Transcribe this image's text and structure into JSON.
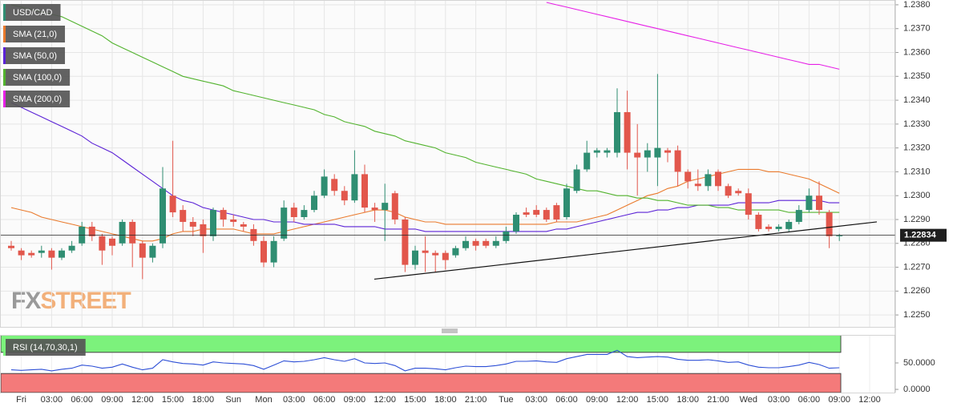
{
  "chart_data": [
    {
      "type": "candlestick",
      "categories": [
        null,
        "Fri",
        null,
        null,
        "03:00",
        null,
        null,
        "06:00",
        null,
        null,
        "09:00",
        null,
        null,
        "12:00",
        null,
        null,
        "15:00",
        null,
        null,
        "18:00",
        null,
        null,
        "Sun",
        null,
        null,
        "Mon",
        null,
        null,
        "03:00",
        null,
        null,
        "06:00",
        null,
        null,
        "09:00",
        null,
        null,
        "12:00",
        null,
        null,
        "15:00",
        null,
        null,
        "18:00",
        null,
        null,
        "21:00",
        null,
        null,
        "Tue",
        null,
        null,
        "03:00",
        null,
        null,
        "06:00",
        null,
        null,
        "09:00",
        null,
        null,
        "12:00",
        null,
        null,
        "15:00",
        null,
        null,
        "18:00",
        null,
        null,
        "21:00",
        null,
        null,
        "Wed",
        null,
        null,
        "03:00",
        null,
        null,
        "06:00",
        null,
        null,
        "09:00",
        null,
        null,
        "12:00"
      ],
      "candles": {
        "name": "USD/CAD",
        "legend_color": "#2f8e72",
        "up_color": "#2f8e72",
        "down_color": "#e2574c",
        "open": [
          1.2279,
          1.2277,
          1.2276,
          1.2276,
          1.2277,
          1.2274,
          1.2277,
          1.228,
          1.2287,
          1.2283,
          1.2282,
          1.228,
          1.2289,
          1.228,
          1.2274,
          1.228,
          1.23,
          1.2294,
          1.2289,
          1.2288,
          1.2283,
          1.2294,
          1.229,
          1.2288,
          1.2286,
          1.2281,
          1.2272,
          1.2282,
          1.2295,
          1.2291,
          1.2294,
          1.23,
          1.2307,
          1.2302,
          1.2298,
          1.2309,
          1.2295,
          1.2294,
          1.2301,
          1.229,
          1.2271,
          1.2277,
          1.2276,
          1.2276,
          1.2275,
          1.2278,
          1.2281,
          1.2281,
          1.2279,
          1.2281,
          1.2285,
          1.2293,
          1.2294,
          1.2294,
          1.2296,
          1.2291,
          1.2302,
          1.2311,
          1.2318,
          1.2318,
          1.2318,
          1.2335,
          1.2318,
          1.2316,
          1.2316,
          1.2319,
          1.2319,
          1.231,
          1.2305,
          1.2304,
          1.231,
          1.2304,
          1.2302,
          1.2301,
          1.2292,
          1.2287,
          1.2286,
          1.2286,
          1.2289,
          1.2294,
          1.23,
          1.2293,
          1.2283,
          null,
          null,
          null
        ],
        "high": [
          1.2281,
          1.2278,
          1.2277,
          1.2279,
          1.2278,
          1.2278,
          1.2281,
          1.2289,
          1.2289,
          1.2284,
          1.2283,
          1.229,
          1.229,
          1.2281,
          1.228,
          1.2312,
          1.2323,
          1.2296,
          1.2291,
          1.229,
          1.2295,
          1.2295,
          1.2292,
          1.2289,
          1.2288,
          1.2283,
          1.2283,
          1.2298,
          1.2297,
          1.2296,
          1.2302,
          1.2311,
          1.2309,
          1.2304,
          1.2319,
          1.2313,
          1.2297,
          1.2305,
          1.2302,
          1.2291,
          1.2279,
          1.2283,
          1.2277,
          1.2277,
          1.2279,
          1.2283,
          1.2282,
          1.2282,
          1.2283,
          1.2287,
          1.2293,
          1.2295,
          1.2296,
          1.2295,
          1.2297,
          1.2305,
          1.2313,
          1.2323,
          1.232,
          1.232,
          1.2345,
          1.2344,
          1.233,
          1.2322,
          1.2351,
          1.232,
          1.2321,
          1.2311,
          1.2311,
          1.2311,
          1.2311,
          1.2305,
          1.2303,
          1.2303,
          1.2293,
          1.2288,
          1.2288,
          1.229,
          1.2296,
          1.2303,
          1.2306,
          1.2294,
          1.2284,
          null,
          null,
          null
        ],
        "low": [
          1.2277,
          1.2273,
          1.2274,
          1.2274,
          1.2269,
          1.2273,
          1.2276,
          1.2279,
          1.2281,
          1.2271,
          1.2275,
          1.2279,
          1.227,
          1.2265,
          1.2272,
          1.2278,
          1.2291,
          1.2285,
          1.2283,
          1.2276,
          1.2281,
          1.2287,
          1.2287,
          1.2285,
          1.2279,
          1.227,
          1.227,
          1.2281,
          1.2289,
          1.229,
          1.2293,
          1.2299,
          1.23,
          1.2296,
          1.2297,
          1.2293,
          1.2289,
          1.2281,
          1.2288,
          1.2268,
          1.2269,
          1.2268,
          1.2268,
          1.2269,
          1.2274,
          1.2277,
          1.2277,
          1.2278,
          1.2278,
          1.228,
          1.2284,
          1.2291,
          1.2291,
          1.2289,
          1.2289,
          1.229,
          1.2301,
          1.231,
          1.2316,
          1.2316,
          1.2316,
          1.2311,
          1.23,
          1.231,
          1.2304,
          1.2314,
          1.2304,
          1.2303,
          1.2302,
          1.2302,
          1.2302,
          1.2299,
          1.23,
          1.229,
          1.2285,
          1.2285,
          1.2285,
          1.2285,
          1.2288,
          1.2293,
          1.2292,
          1.2278,
          1.2281,
          null,
          null,
          null
        ],
        "close": [
          1.2278,
          1.2275,
          1.2275,
          1.2277,
          1.2274,
          1.2277,
          1.2279,
          1.2287,
          1.2283,
          1.2277,
          1.2279,
          1.2289,
          1.228,
          1.2274,
          1.2279,
          1.2303,
          1.2293,
          1.2289,
          1.2287,
          1.2283,
          1.2294,
          1.229,
          1.2289,
          1.2287,
          1.2281,
          1.2272,
          1.2281,
          1.2295,
          1.2291,
          1.2294,
          1.23,
          1.2308,
          1.2302,
          1.2298,
          1.2309,
          1.2295,
          1.2294,
          1.2297,
          1.229,
          1.2271,
          1.2277,
          1.2276,
          1.2275,
          1.2273,
          1.2278,
          1.2281,
          1.2279,
          1.2279,
          1.2281,
          1.2285,
          1.2292,
          1.2292,
          1.2292,
          1.229,
          1.229,
          1.2303,
          1.2311,
          1.2318,
          1.2319,
          1.2319,
          1.2335,
          1.2318,
          1.2316,
          1.2319,
          1.232,
          1.2318,
          1.231,
          1.2306,
          1.2304,
          1.2309,
          1.2304,
          1.23,
          1.2301,
          1.2292,
          1.2286,
          1.2286,
          1.2287,
          1.2289,
          1.2294,
          1.23,
          1.2294,
          1.2283,
          1.22834,
          null,
          null,
          null
        ]
      },
      "series": [
        {
          "name": "SMA (21,0)",
          "color": "#ea7a2c",
          "values": [
            1.2295,
            1.2294,
            1.2293,
            1.2291,
            1.229,
            1.2289,
            1.2288,
            1.2287,
            1.2286,
            1.2285,
            1.2284,
            1.2283,
            1.2282,
            1.2281,
            1.2281,
            1.2282,
            1.2284,
            1.2285,
            1.2285,
            1.2286,
            1.2286,
            1.2286,
            1.2286,
            1.2285,
            1.2284,
            1.2284,
            1.2284,
            1.2285,
            1.2286,
            1.2287,
            1.2288,
            1.2289,
            1.229,
            1.2291,
            1.2292,
            1.2293,
            1.2294,
            1.2294,
            1.2293,
            1.2291,
            1.229,
            1.2289,
            1.2289,
            1.2288,
            1.2288,
            1.2288,
            1.2288,
            1.2288,
            1.2288,
            1.2288,
            1.2288,
            1.2288,
            1.2288,
            1.2288,
            1.2289,
            1.2289,
            1.2289,
            1.229,
            1.2291,
            1.2292,
            1.2294,
            1.2296,
            1.2298,
            1.23,
            1.2301,
            1.2303,
            1.2304,
            1.2306,
            1.2307,
            1.2308,
            1.2309,
            1.231,
            1.2311,
            1.2311,
            1.2311,
            1.231,
            1.231,
            1.2309,
            1.2308,
            1.2307,
            1.2305,
            1.2303,
            1.2301,
            null,
            null,
            null
          ]
        },
        {
          "name": "SMA (50,0)",
          "color": "#5b22d6",
          "values": [
            1.2339,
            1.2337,
            1.2335,
            1.2333,
            1.2331,
            1.2329,
            1.2327,
            1.2325,
            1.2322,
            1.232,
            1.2318,
            1.2315,
            1.2312,
            1.2309,
            1.2306,
            1.2303,
            1.23,
            1.2298,
            1.2297,
            1.2295,
            1.2294,
            1.2293,
            1.2292,
            1.2291,
            1.229,
            1.229,
            1.2289,
            1.2289,
            1.2289,
            1.2288,
            1.2288,
            1.2288,
            1.2288,
            1.2287,
            1.2287,
            1.2287,
            1.2287,
            1.2286,
            1.2286,
            1.2286,
            1.2286,
            1.2285,
            1.2285,
            1.2285,
            1.2285,
            1.2285,
            1.2285,
            1.2285,
            1.2285,
            1.2285,
            1.2285,
            1.2285,
            1.2285,
            1.2285,
            1.2286,
            1.2286,
            1.2287,
            1.2288,
            1.2289,
            1.229,
            1.2291,
            1.2292,
            1.2293,
            1.2293,
            1.2294,
            1.2294,
            1.2295,
            1.2295,
            1.2296,
            1.2296,
            1.2296,
            1.2296,
            1.2297,
            1.2297,
            1.2297,
            1.2297,
            1.2298,
            1.2298,
            1.2298,
            1.2298,
            1.2298,
            1.2297,
            1.2297,
            null,
            null,
            null
          ]
        },
        {
          "name": "SMA (100,0)",
          "color": "#52b32e",
          "values": [
            1.238,
            1.2379,
            1.2378,
            1.2377,
            1.2376,
            1.2375,
            1.2373,
            1.2371,
            1.2369,
            1.2367,
            1.2364,
            1.2362,
            1.236,
            1.2358,
            1.2356,
            1.2354,
            1.2352,
            1.235,
            1.2349,
            1.2348,
            1.2347,
            1.2346,
            1.2344,
            1.2343,
            1.2342,
            1.2341,
            1.234,
            1.2339,
            1.2338,
            1.2337,
            1.2336,
            1.2334,
            1.2333,
            1.2331,
            1.233,
            1.2329,
            1.2327,
            1.2326,
            1.2325,
            1.2323,
            1.2322,
            1.2321,
            1.232,
            1.2318,
            1.2317,
            1.2316,
            1.2314,
            1.2313,
            1.2312,
            1.2311,
            1.231,
            1.2309,
            1.2307,
            1.2306,
            1.2305,
            1.2304,
            1.2303,
            1.2302,
            1.2302,
            1.2301,
            1.23,
            1.23,
            1.2299,
            1.2299,
            1.2298,
            1.2298,
            1.2297,
            1.2296,
            1.2296,
            1.2296,
            1.2295,
            1.2295,
            1.2294,
            1.2294,
            1.2294,
            1.2294,
            1.2294,
            1.2293,
            1.2293,
            1.2293,
            1.2293,
            1.2293,
            1.2293,
            null,
            null,
            null
          ]
        },
        {
          "name": "SMA (200,0)",
          "color": "#e620e6",
          "values": [
            null,
            null,
            null,
            null,
            null,
            null,
            null,
            null,
            null,
            null,
            null,
            null,
            null,
            null,
            null,
            null,
            null,
            null,
            null,
            null,
            null,
            null,
            null,
            null,
            null,
            null,
            null,
            null,
            null,
            null,
            null,
            null,
            null,
            null,
            null,
            null,
            null,
            null,
            null,
            null,
            null,
            null,
            null,
            null,
            null,
            null,
            null,
            null,
            null,
            null,
            null,
            null,
            null,
            1.2381,
            1.238,
            1.2379,
            1.2378,
            1.2377,
            1.2376,
            1.2375,
            1.2374,
            1.2373,
            1.2372,
            1.2371,
            1.237,
            1.2369,
            1.2368,
            1.2367,
            1.2366,
            1.2365,
            1.2364,
            1.2363,
            1.2362,
            1.2361,
            1.236,
            1.2359,
            1.2358,
            1.2357,
            1.2356,
            1.2355,
            1.2355,
            1.2354,
            1.2353,
            null,
            null,
            null
          ]
        }
      ],
      "trendline": {
        "values": [
          1.2265,
          1.2289
        ]
      },
      "last_price": {
        "value": 1.22834,
        "label": "1.22834"
      },
      "ylim": [
        1.2245,
        1.2382
      ],
      "yticks": [
        {
          "value": 1.225,
          "label": "1.2250"
        },
        {
          "value": 1.226,
          "label": "1.2260"
        },
        {
          "value": 1.227,
          "label": "1.2270"
        },
        {
          "value": 1.228,
          "label": "1.2280"
        },
        {
          "value": 1.229,
          "label": "1.2290"
        },
        {
          "value": 1.23,
          "label": "1.2300"
        },
        {
          "value": 1.231,
          "label": "1.2310"
        },
        {
          "value": 1.232,
          "label": "1.2320"
        },
        {
          "value": 1.233,
          "label": "1.2330"
        },
        {
          "value": 1.234,
          "label": "1.2340"
        },
        {
          "value": 1.235,
          "label": "1.2350"
        },
        {
          "value": 1.236,
          "label": "1.2360"
        },
        {
          "value": 1.237,
          "label": "1.2370"
        },
        {
          "value": 1.238,
          "label": "1.2380"
        }
      ],
      "grid": true,
      "logo": {
        "prefix": "FX",
        "suffix": "STREET"
      }
    },
    {
      "type": "line",
      "title": "RSI (14,70,30,1)",
      "title_color": "#7cf27c",
      "series": [
        {
          "color": "#2d4fd6",
          "values": [
            37,
            36,
            37,
            38,
            35,
            38,
            40,
            46,
            44,
            40,
            42,
            48,
            42,
            37,
            40,
            56,
            52,
            49,
            48,
            46,
            52,
            50,
            49,
            48,
            45,
            38,
            46,
            54,
            52,
            53,
            56,
            60,
            56,
            53,
            58,
            50,
            49,
            50,
            45,
            35,
            40,
            40,
            39,
            37,
            41,
            44,
            43,
            43,
            45,
            48,
            53,
            53,
            54,
            52,
            51,
            58,
            62,
            66,
            66,
            66,
            74,
            62,
            60,
            61,
            62,
            61,
            57,
            55,
            55,
            56,
            54,
            51,
            52,
            46,
            42,
            41,
            41,
            43,
            46,
            51,
            47,
            40,
            41,
            null,
            null,
            null
          ]
        }
      ],
      "bands": {
        "overbought": 70,
        "oversold": 30,
        "overbought_color": "#7cf27c",
        "oversold_color": "#f47a7a"
      },
      "ylim": [
        -6,
        103
      ],
      "yticks": [
        {
          "value": 0,
          "label": "0.0000"
        },
        {
          "value": 50,
          "label": "50.0000"
        }
      ]
    }
  ]
}
